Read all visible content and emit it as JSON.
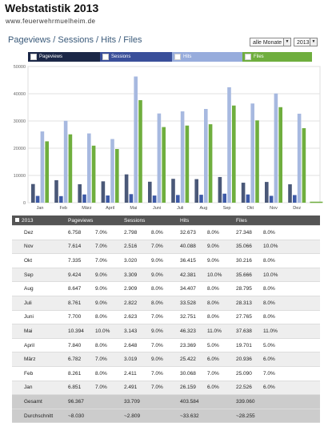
{
  "header": {
    "title": "Webstatistik 2013",
    "url": "www.feuerwehrmuelheim.de",
    "section": "Pageviews / Sessions / Hits / Files"
  },
  "filters": {
    "months_label": "alle Monate",
    "year_label": "2013"
  },
  "legend": [
    {
      "label": "Pageviews",
      "color": "#1b2747"
    },
    {
      "label": "Sessions",
      "color": "#3a4f9a"
    },
    {
      "label": "Hits",
      "color": "#97acdc"
    },
    {
      "label": "Files",
      "color": "#6fae3e"
    }
  ],
  "chart_data": {
    "type": "bar",
    "categories": [
      "Jan",
      "Feb",
      "März",
      "April",
      "Mai",
      "Juni",
      "Juli",
      "Aug",
      "Sep",
      "Okt",
      "Nov",
      "Dez"
    ],
    "ylim": [
      0,
      50000
    ],
    "yticks": [
      0,
      10000,
      20000,
      30000,
      40000,
      50000
    ],
    "yticklabels": [
      "0",
      "10000",
      "20000",
      "30000",
      "40000",
      "50000"
    ],
    "grid": true,
    "series": [
      {
        "name": "Pageviews",
        "color": "#4a5878",
        "values": [
          6851,
          8261,
          6782,
          7840,
          10394,
          7700,
          8761,
          8647,
          9424,
          7335,
          7614,
          6758
        ]
      },
      {
        "name": "Sessions",
        "color": "#3d5aa8",
        "values": [
          2491,
          2411,
          3019,
          2648,
          3143,
          2623,
          2822,
          2909,
          3309,
          3020,
          2516,
          2798
        ]
      },
      {
        "name": "Hits",
        "color": "#a7b9e0",
        "values": [
          26159,
          30068,
          25422,
          23369,
          46323,
          32751,
          33528,
          34407,
          42381,
          36415,
          40088,
          32673
        ]
      },
      {
        "name": "Files",
        "color": "#6fae3e",
        "values": [
          22526,
          25090,
          20936,
          19701,
          37638,
          27765,
          28313,
          28795,
          35666,
          30216,
          35066,
          27348
        ]
      }
    ]
  },
  "table": {
    "header": [
      "2013",
      "Pageviews",
      "Sessions",
      "Hits",
      "Files"
    ],
    "rows": [
      [
        "Dez",
        "6.758",
        "7.0%",
        "2.798",
        "8.0%",
        "32.673",
        "8.0%",
        "27.348",
        "8.0%"
      ],
      [
        "Nov",
        "7.614",
        "7.0%",
        "2.516",
        "7.0%",
        "40.088",
        "9.0%",
        "35.066",
        "10.0%"
      ],
      [
        "Okt",
        "7.335",
        "7.0%",
        "3.020",
        "9.0%",
        "36.415",
        "9.0%",
        "30.216",
        "8.0%"
      ],
      [
        "Sep",
        "9.424",
        "9.0%",
        "3.309",
        "9.0%",
        "42.381",
        "10.0%",
        "35.666",
        "10.0%"
      ],
      [
        "Aug",
        "8.647",
        "9.0%",
        "2.909",
        "8.0%",
        "34.407",
        "8.0%",
        "28.795",
        "8.0%"
      ],
      [
        "Juli",
        "8.761",
        "9.0%",
        "2.822",
        "8.0%",
        "33.528",
        "8.0%",
        "28.313",
        "8.0%"
      ],
      [
        "Juni",
        "7.700",
        "8.0%",
        "2.623",
        "7.0%",
        "32.751",
        "8.0%",
        "27.765",
        "8.0%"
      ],
      [
        "Mai",
        "10.394",
        "10.0%",
        "3.143",
        "9.0%",
        "46.323",
        "11.0%",
        "37.638",
        "11.0%"
      ],
      [
        "April",
        "7.840",
        "8.0%",
        "2.648",
        "7.0%",
        "23.369",
        "5.0%",
        "19.701",
        "5.0%"
      ],
      [
        "März",
        "6.782",
        "7.0%",
        "3.019",
        "9.0%",
        "25.422",
        "6.0%",
        "20.936",
        "6.0%"
      ],
      [
        "Feb",
        "8.261",
        "8.0%",
        "2.411",
        "7.0%",
        "30.068",
        "7.0%",
        "25.090",
        "7.0%"
      ],
      [
        "Jan",
        "6.851",
        "7.0%",
        "2.491",
        "7.0%",
        "26.159",
        "6.0%",
        "22.526",
        "6.0%"
      ]
    ],
    "footer": [
      [
        "Gesamt",
        "96.367",
        "",
        "33.709",
        "",
        "403.584",
        "",
        "339.060",
        ""
      ],
      [
        "Durchschnitt",
        "~8.030",
        "",
        "~2.809",
        "",
        "~33.632",
        "",
        "~28.255",
        ""
      ]
    ]
  }
}
